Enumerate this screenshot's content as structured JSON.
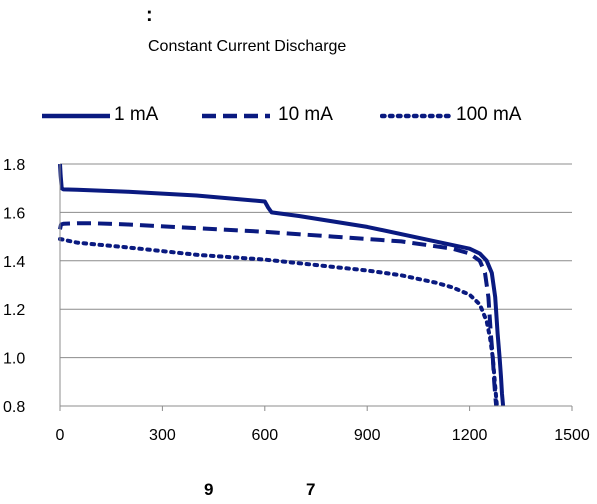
{
  "header": {
    "mark": ":",
    "subtitle": "Constant Current Discharge"
  },
  "footer": {
    "left_glyph": "9",
    "right_glyph": "7"
  },
  "chart_data": {
    "type": "line",
    "title": "",
    "subtitle": "Constant Current Discharge",
    "xlabel": "",
    "ylabel": "",
    "xlim": [
      0,
      1500
    ],
    "ylim": [
      0.8,
      1.8
    ],
    "xticks": [
      "0",
      "300",
      "600",
      "900",
      "1200",
      "1500"
    ],
    "yticks": [
      "0.8",
      "1.0",
      "1.2",
      "1.4",
      "1.6",
      "1.8"
    ],
    "grid": "horizontal",
    "legend_position": "top",
    "series": [
      {
        "name": "1 mA",
        "color": "#0a1a80",
        "dash": "solid",
        "x": [
          0,
          2,
          5,
          10,
          50,
          200,
          400,
          600,
          610,
          620,
          700,
          900,
          1100,
          1200,
          1230,
          1250,
          1265,
          1275,
          1282,
          1288,
          1292,
          1295,
          1298
        ],
        "y": [
          1.8,
          1.75,
          1.7,
          1.695,
          1.694,
          1.685,
          1.67,
          1.645,
          1.62,
          1.6,
          1.585,
          1.54,
          1.48,
          1.45,
          1.43,
          1.4,
          1.35,
          1.25,
          1.1,
          1.0,
          0.92,
          0.85,
          0.8
        ]
      },
      {
        "name": "10 mA",
        "color": "#0a1a80",
        "dash": "dashed",
        "x": [
          0,
          3,
          10,
          50,
          100,
          200,
          400,
          600,
          800,
          1000,
          1150,
          1200,
          1230,
          1245,
          1255,
          1262,
          1268,
          1272,
          1276,
          1278
        ],
        "y": [
          1.53,
          1.55,
          1.553,
          1.555,
          1.555,
          1.55,
          1.535,
          1.52,
          1.5,
          1.48,
          1.45,
          1.43,
          1.4,
          1.35,
          1.25,
          1.1,
          1.0,
          0.9,
          0.83,
          0.8
        ]
      },
      {
        "name": "100 mA",
        "color": "#0a1a80",
        "dash": "dotted",
        "x": [
          0,
          50,
          100,
          200,
          300,
          400,
          500,
          600,
          700,
          800,
          900,
          1000,
          1100,
          1150,
          1200,
          1230,
          1250,
          1260,
          1268,
          1275,
          1280
        ],
        "y": [
          1.49,
          1.475,
          1.468,
          1.455,
          1.44,
          1.425,
          1.415,
          1.405,
          1.39,
          1.375,
          1.36,
          1.34,
          1.31,
          1.29,
          1.26,
          1.22,
          1.15,
          1.08,
          1.0,
          0.88,
          0.8
        ]
      }
    ]
  }
}
